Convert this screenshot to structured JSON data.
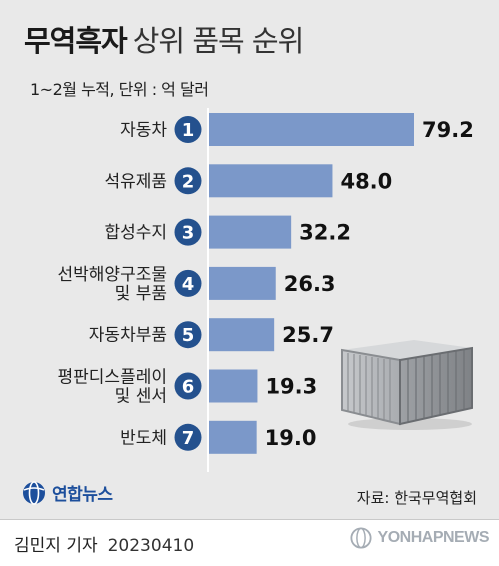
{
  "header": {
    "title_bold": "무역흑자",
    "title_light": "상위 품목 순위",
    "subtitle": "1~2월 누적, 단위 : 억 달러"
  },
  "chart_data": {
    "type": "bar",
    "orientation": "horizontal",
    "title": "무역흑자 상위 품목 순위",
    "subtitle": "1~2월 누적, 단위 : 억 달러",
    "unit": "억 달러",
    "items": [
      {
        "rank": "1",
        "label_lines": [
          "자동차"
        ],
        "value": 79.2,
        "value_label": "79.2"
      },
      {
        "rank": "2",
        "label_lines": [
          "석유제품"
        ],
        "value": 48.0,
        "value_label": "48.0"
      },
      {
        "rank": "3",
        "label_lines": [
          "합성수지"
        ],
        "value": 32.2,
        "value_label": "32.2"
      },
      {
        "rank": "4",
        "label_lines": [
          "선박해양구조물",
          "및 부품"
        ],
        "value": 26.3,
        "value_label": "26.3"
      },
      {
        "rank": "5",
        "label_lines": [
          "자동차부품"
        ],
        "value": 25.7,
        "value_label": "25.7"
      },
      {
        "rank": "6",
        "label_lines": [
          "평판디스플레이",
          "및 센서"
        ],
        "value": 19.3,
        "value_label": "19.3"
      },
      {
        "rank": "7",
        "label_lines": [
          "반도체"
        ],
        "value": 19.0,
        "value_label": "19.0"
      }
    ],
    "xlim": [
      0,
      79.2
    ],
    "grid": false,
    "colors": {
      "bar": "#7b98c9",
      "rank_badge": "#24518e",
      "value_text": "#111111",
      "label_text": "#222222"
    }
  },
  "footer": {
    "logo_text": "연합뉴스",
    "source": "자료: 한국무역협회",
    "author": "김민지 기자",
    "date": "20230410",
    "watermark": "YONHAPNEWS"
  }
}
